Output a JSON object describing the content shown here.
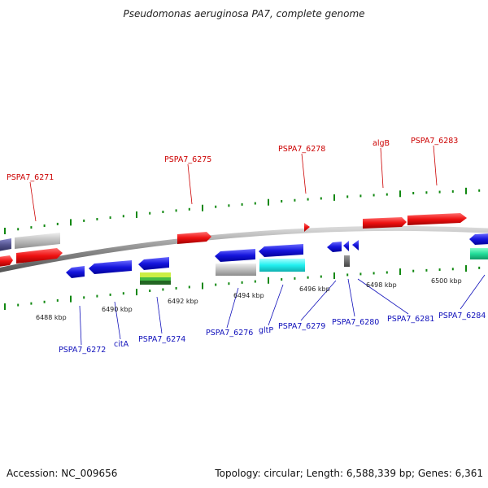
{
  "title": "Pseudomonas aeruginosa PA7, complete genome",
  "footer": {
    "accession": "Accession: NC_009656",
    "summary": "Topology: circular; Length: 6,588,339 bp; Genes: 6,361"
  },
  "colors": {
    "forward_gene": "#ee1111",
    "reverse_gene": "#1515dd",
    "tick": "#118811",
    "backbone": "#888888"
  },
  "scale_labels": [
    "6488 kbp",
    "6490 kbp",
    "6492 kbp",
    "6494 kbp",
    "6496 kbp",
    "6498 kbp",
    "6500 kbp"
  ],
  "forward_labels": [
    "PSPA7_6271",
    "PSPA7_6275",
    "PSPA7_6278",
    "algB",
    "PSPA7_6283"
  ],
  "reverse_labels": [
    "PSPA7_6272",
    "citA",
    "PSPA7_6274",
    "PSPA7_6276",
    "gltP",
    "PSPA7_6279",
    "PSPA7_6280",
    "PSPA7_6281",
    "PSPA7_6284"
  ]
}
